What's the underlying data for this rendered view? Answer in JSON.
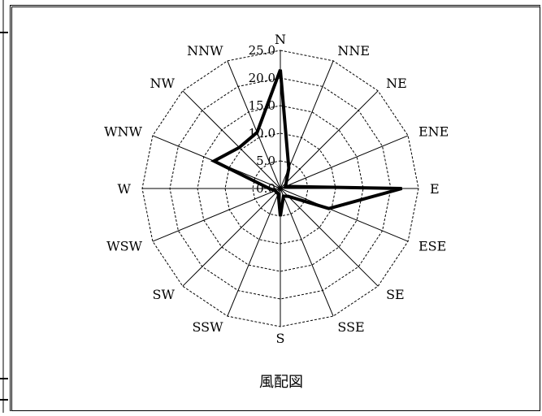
{
  "chart_data": {
    "type": "radar",
    "title": "風配図",
    "directions": [
      "N",
      "NNE",
      "NE",
      "ENE",
      "E",
      "ESE",
      "SE",
      "SSE",
      "S",
      "SSW",
      "SW",
      "WSW",
      "W",
      "WNW",
      "NW",
      "NNW"
    ],
    "values": [
      21.5,
      4.0,
      1.5,
      1.0,
      22.0,
      9.5,
      2.0,
      1.5,
      5.0,
      1.0,
      1.0,
      1.0,
      2.0,
      13.0,
      10.5,
      11.0
    ],
    "rlim": [
      0,
      25
    ],
    "rticks": [
      "0.0",
      "5.0",
      "10.0",
      "15.0",
      "20.0",
      "25.0"
    ],
    "grid": true
  }
}
